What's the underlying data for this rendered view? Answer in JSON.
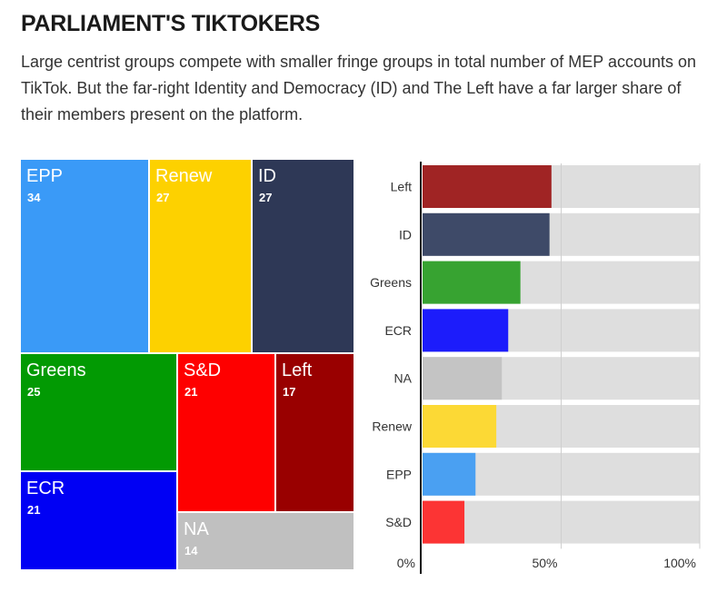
{
  "header": {
    "title": "PARLIAMENT'S TIKTOKERS",
    "subtitle": "Large centrist groups compete with smaller fringe groups in total number of MEP accounts on TikTok. But the far-right Identity and Democracy (ID) and The Left have a far larger share of their members present on the platform."
  },
  "chart_data": [
    {
      "type": "treemap",
      "title": "",
      "items": [
        {
          "name": "EPP",
          "value": 34,
          "color": "#3a9af7"
        },
        {
          "name": "Renew",
          "value": 27,
          "color": "#fdd100"
        },
        {
          "name": "ID",
          "value": 27,
          "color": "#2e3856"
        },
        {
          "name": "Greens",
          "value": 25,
          "color": "#029a03"
        },
        {
          "name": "S&D",
          "value": 21,
          "color": "#fe0000"
        },
        {
          "name": "Left",
          "value": 17,
          "color": "#990000"
        },
        {
          "name": "ECR",
          "value": 21,
          "color": "#0000f4"
        },
        {
          "name": "NA",
          "value": 14,
          "color": "#c0c0c0"
        }
      ]
    },
    {
      "type": "bar",
      "orientation": "horizontal",
      "title": "",
      "categories": [
        "Left",
        "ID",
        "Greens",
        "ECR",
        "NA",
        "Renew",
        "EPP",
        "S&D"
      ],
      "values": [
        46.5,
        45.8,
        35.3,
        30.9,
        28.6,
        26.6,
        19.1,
        15.1
      ],
      "colors": [
        "#a02424",
        "#3e4a68",
        "#37a331",
        "#1c1cfb",
        "#c4c4c4",
        "#fcd935",
        "#4aa0f2",
        "#fc3434"
      ],
      "track_color": "#dedede",
      "xlim": [
        0,
        100
      ],
      "xticks": [
        "0%",
        "50%",
        "100%"
      ],
      "xlabel": "",
      "ylabel": ""
    }
  ]
}
